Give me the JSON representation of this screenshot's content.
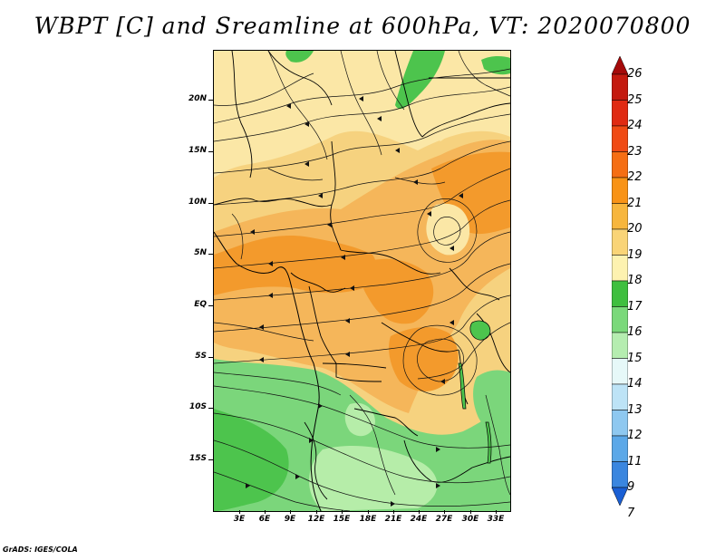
{
  "title": "WBPT [C] and Sreamline at 600hPa, VT: 2020070800",
  "footer": "GrADS: IGES/COLA",
  "lat_labels": [
    "20N",
    "15N",
    "10N",
    "5N",
    "EQ",
    "5S",
    "10S",
    "15S"
  ],
  "lon_labels": [
    "3E",
    "6E",
    "9E",
    "12E",
    "15E",
    "18E",
    "21E",
    "24E",
    "27E",
    "30E",
    "33E"
  ],
  "colorbar": {
    "labels": [
      "26",
      "25",
      "24",
      "23",
      "22",
      "21",
      "20",
      "19",
      "18",
      "17",
      "16",
      "15",
      "14",
      "13",
      "12",
      "11",
      "9",
      "7"
    ],
    "colors": [
      "#a50a0a",
      "#c41a0f",
      "#e02a12",
      "#f04a14",
      "#f56e14",
      "#f89316",
      "#f7b63d",
      "#f9d477",
      "#fdf2b0",
      "#3fbf3f",
      "#7ad97a",
      "#b5edb0",
      "#e6f8f8",
      "#bde3f6",
      "#8ec8f0",
      "#5ba8e8",
      "#3a86df",
      "#1a5fd4"
    ]
  },
  "map_colors": {
    "cool_green": "#7bd67b",
    "mid_green": "#4dc44d",
    "light_green": "#b6eda9",
    "pale_yellow": "#fbe7a6",
    "yellow": "#f6d27f",
    "light_orange": "#f5b65a",
    "orange": "#f39a2c"
  }
}
